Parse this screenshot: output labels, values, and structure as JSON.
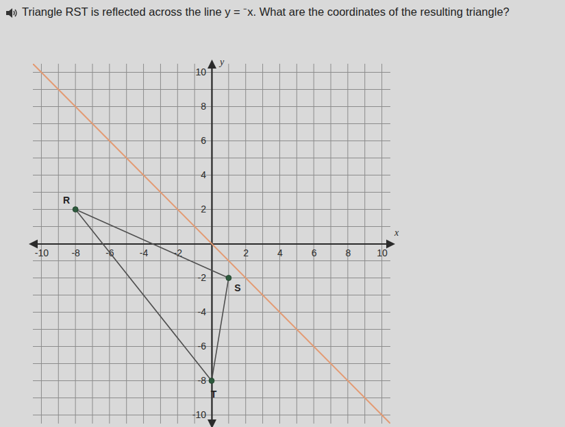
{
  "chart_data": {
    "type": "line",
    "title": "Triangle RST is reflected across the line y = ⁻x. What are the coordinates of the resulting triangle?",
    "xlabel": "x",
    "ylabel": "y",
    "xlim": [
      -10.5,
      10.5
    ],
    "ylim": [
      -10.5,
      10.5
    ],
    "xticks": [
      -10,
      -8,
      -6,
      -4,
      -2,
      2,
      4,
      6,
      8,
      10
    ],
    "yticks": [
      -10,
      -8,
      -6,
      -4,
      -2,
      2,
      4,
      6,
      8,
      10
    ],
    "grid": true,
    "series": [
      {
        "type": "line",
        "color": "#e39a72",
        "x": [
          -10.5,
          10.5
        ],
        "values": [
          10.5,
          -10.5
        ]
      },
      {
        "type": "polygon",
        "color": "#4f4f4f",
        "marker": "circle",
        "x": [
          -8,
          1,
          0
        ],
        "values": [
          2,
          -2,
          -8
        ],
        "labels": [
          "R",
          "S",
          "T"
        ]
      }
    ]
  }
}
